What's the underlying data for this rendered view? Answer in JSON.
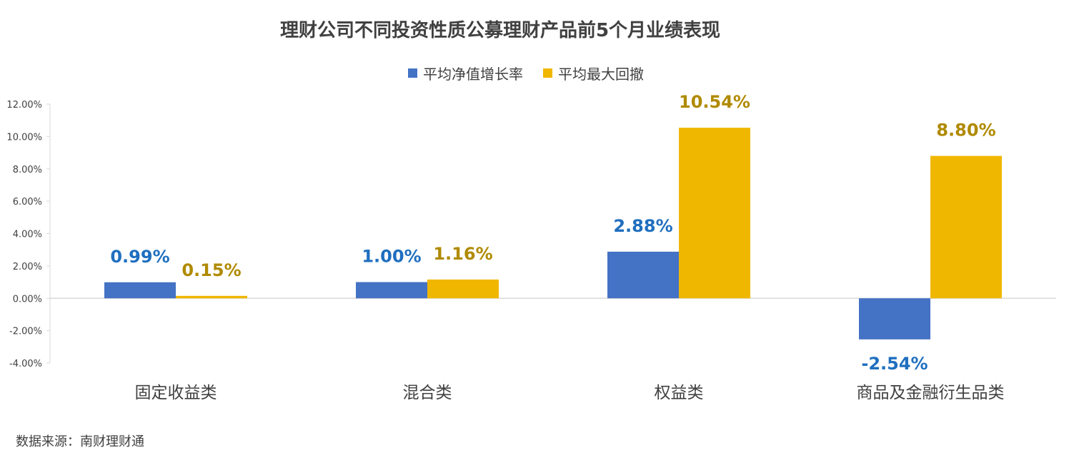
{
  "title": "理财公司不同投资性质公募理财产品前5个月业绩表现",
  "source": "数据来源：南财理财通",
  "colors": {
    "series0": "#4472C4",
    "series1": "#F0B700",
    "label0": "#1F6FBF",
    "label1": "#B08A00",
    "axis": "#D9D9D9",
    "text": "#404040"
  },
  "chart_data": {
    "type": "bar",
    "categories": [
      "固定收益类",
      "混合类",
      "权益类",
      "商品及金融衍生品类"
    ],
    "series": [
      {
        "name": "平均净值增长率",
        "values": [
          0.99,
          1.0,
          2.88,
          -2.54
        ],
        "labels": [
          "0.99%",
          "1.00%",
          "2.88%",
          "-2.54%"
        ]
      },
      {
        "name": "平均最大回撤",
        "values": [
          0.15,
          1.16,
          10.54,
          8.8
        ],
        "labels": [
          "0.15%",
          "1.16%",
          "10.54%",
          "8.80%"
        ]
      }
    ],
    "ylim": [
      -4,
      12
    ],
    "yticks": [
      12,
      10,
      8,
      6,
      4,
      2,
      0,
      -2,
      -4
    ],
    "ytick_labels": [
      "12.00%",
      "10.00%",
      "8.00%",
      "6.00%",
      "4.00%",
      "2.00%",
      "0.00%",
      "-2.00%",
      "-4.00%"
    ],
    "legend_position": "top",
    "grid": false
  }
}
